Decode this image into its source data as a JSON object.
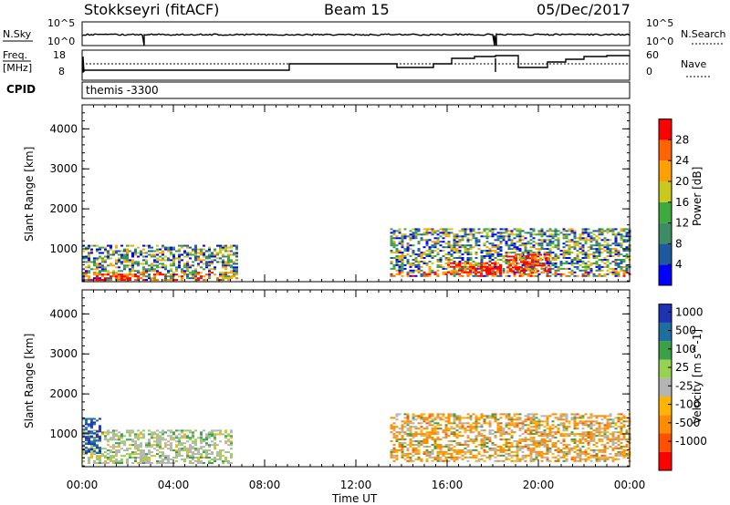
{
  "header": {
    "station": "Stokkseyri (fitACF)",
    "beam": "Beam 15",
    "date": "05/Dec/2017"
  },
  "top_panels": {
    "nsky_label": "N.Sky",
    "nsearch_label": "N.Search",
    "nsky_ticks": [
      "10^5",
      "10^0"
    ],
    "nsearch_ticks": [
      "10^5",
      "10^0"
    ],
    "freq_label_line1": "Freq.",
    "freq_label_line2": "[MHz]",
    "freq_ticks": [
      "18",
      "8"
    ],
    "nave_label": "Nave",
    "nave_ticks": [
      "60",
      "0"
    ],
    "cpid_label": "CPID",
    "cpid_value": "themis -3300"
  },
  "colors": {
    "power_scale": [
      "#0000ff",
      "#1e5aa0",
      "#3c8c64",
      "#3caa3c",
      "#c8c81e",
      "#ffa000",
      "#ff6400",
      "#ff0000"
    ],
    "velocity_scale": [
      "#ff0000",
      "#ff5000",
      "#ff8c00",
      "#ffb400",
      "#b4b4b4",
      "#96d250",
      "#3ca046",
      "#1e6ea0",
      "#1e32b4"
    ]
  },
  "chart_data": [
    {
      "type": "heatmap",
      "title": "",
      "xlabel": "",
      "ylabel": "Slant Range [km]",
      "x_ticks": [
        "00:00",
        "04:00",
        "08:00",
        "12:00",
        "16:00",
        "20:00",
        "00:00"
      ],
      "xlim_hours": [
        0,
        24
      ],
      "ylim_km": [
        180,
        4600
      ],
      "y_ticks": [
        "1000",
        "2000",
        "3000",
        "4000"
      ],
      "y_tick_values": [
        1000,
        2000,
        3000,
        4000
      ],
      "colorbar_label": "Power [dB]",
      "colorbar_ticks": [
        "4",
        "8",
        "12",
        "16",
        "20",
        "24",
        "28"
      ],
      "clim": [
        0,
        32
      ],
      "regions": [
        {
          "t": [
            0.0,
            6.8
          ],
          "r": [
            200,
            1100
          ],
          "level": "mixed-low-high"
        },
        {
          "t": [
            0.6,
            2.5
          ],
          "r": [
            200,
            380
          ],
          "level": "high"
        },
        {
          "t": [
            13.5,
            24.0
          ],
          "r": [
            300,
            1500
          ],
          "level": "mixed-low-high"
        },
        {
          "t": [
            16.0,
            18.3
          ],
          "r": [
            350,
            650
          ],
          "level": "high"
        },
        {
          "t": [
            18.6,
            20.5
          ],
          "r": [
            380,
            850
          ],
          "level": "high"
        }
      ]
    },
    {
      "type": "heatmap",
      "title": "",
      "xlabel": "Time UT",
      "ylabel": "Slant Range [km]",
      "x_ticks": [
        "00:00",
        "04:00",
        "08:00",
        "12:00",
        "16:00",
        "20:00",
        "00:00"
      ],
      "xlim_hours": [
        0,
        24
      ],
      "ylim_km": [
        180,
        4600
      ],
      "y_ticks": [
        "1000",
        "2000",
        "3000",
        "4000"
      ],
      "y_tick_values": [
        1000,
        2000,
        3000,
        4000
      ],
      "colorbar_label": "Velocity [m s^-1]",
      "colorbar_ticks": [
        "1000",
        "500",
        "100",
        "25",
        "-25",
        "-100",
        "-500",
        "-1000"
      ],
      "regions": [
        {
          "t": [
            0.0,
            6.5
          ],
          "r": [
            250,
            1100
          ],
          "level": "mixed-green-gray"
        },
        {
          "t": [
            0.0,
            0.8
          ],
          "r": [
            500,
            1400
          ],
          "level": "blue"
        },
        {
          "t": [
            13.5,
            24.0
          ],
          "r": [
            300,
            1500
          ],
          "level": "mixed-orange-gray"
        }
      ]
    }
  ]
}
